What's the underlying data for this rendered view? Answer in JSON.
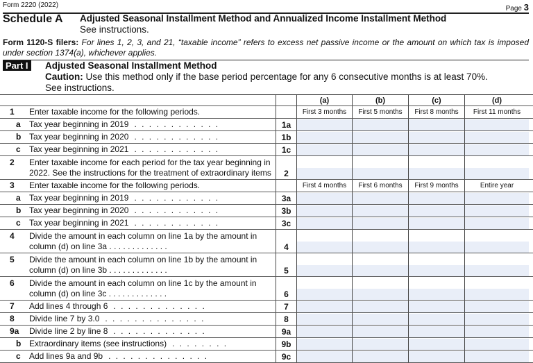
{
  "header": {
    "form": "Form 2220 (2022)",
    "page_label": "Page",
    "page_num": "3"
  },
  "schedule": {
    "label": "Schedule A",
    "title": "Adjusted Seasonal Installment Method and Annualized Income Installment Method",
    "see": "See instructions."
  },
  "filers": {
    "bold": "Form 1120-S filers:",
    "text": " For lines 1, 2, 3, and 21, “taxable income” refers to excess net passive income or the amount on which tax is imposed under section 1374(a), whichever applies."
  },
  "part": {
    "label": "Part I",
    "title": "Adjusted Seasonal Installment Method",
    "caution_bold": "Caution:",
    "caution": " Use this method only if the base period percentage for any 6 consecutive months is at least 70%.",
    "see": "See instructions."
  },
  "columns": [
    "(a)",
    "(b)",
    "(c)",
    "(d)"
  ],
  "periods1": [
    "First 3 months",
    "First 5 months",
    "First 8 months",
    "First 11 months"
  ],
  "periods3": [
    "First 4 months",
    "First 6 months",
    "First 9 months",
    "Entire year"
  ],
  "lines": [
    {
      "type": "head",
      "num": "1",
      "text": "Enter taxable income for the following periods.",
      "periods": "periods1"
    },
    {
      "num": "a",
      "sub": true,
      "text": "Tax year beginning in 2019",
      "dots": ". . . . . . . . . . . .",
      "label": "1a"
    },
    {
      "num": "b",
      "sub": true,
      "text": "Tax year beginning in 2020",
      "dots": ". . . . . . . . . . . .",
      "label": "1b"
    },
    {
      "num": "c",
      "sub": true,
      "text": "Tax year beginning in 2021",
      "dots": ". . . . . . . . . . . .",
      "label": "1c"
    },
    {
      "num": "2",
      "tall": true,
      "text": "Enter taxable income for each period for the tax year beginning in 2022. See the instructions for the treatment of extraordinary items",
      "label": "2"
    },
    {
      "type": "head",
      "num": "3",
      "text": "Enter taxable income for the following periods.",
      "periods": "periods3"
    },
    {
      "num": "a",
      "sub": true,
      "text": "Tax year beginning in 2019",
      "dots": ". . . . . . . . . . . .",
      "label": "3a"
    },
    {
      "num": "b",
      "sub": true,
      "text": "Tax year beginning in 2020",
      "dots": ". . . . . . . . . . . .",
      "label": "3b"
    },
    {
      "num": "c",
      "sub": true,
      "text": "Tax year beginning in 2021",
      "dots": ". . . . . . . . . . . .",
      "label": "3c"
    },
    {
      "num": "4",
      "tall": true,
      "text": "Divide the amount in each column on line 1a by the amount in column (d) on line 3a  . . . . . . . . . . . . .",
      "label": "4"
    },
    {
      "num": "5",
      "tall": true,
      "text": "Divide the amount in each column on line 1b by the amount in column (d) on line 3b  . . . . . . . . . . . . .",
      "label": "5"
    },
    {
      "num": "6",
      "tall": true,
      "text": "Divide the amount in each column on line 1c by the amount in column (d) on line 3c  . . . . . . . . . . . . .",
      "label": "6"
    },
    {
      "num": "7",
      "text": "Add lines 4 through 6",
      "dots": ". . . . . . . . . . . . .",
      "label": "7"
    },
    {
      "num": "8",
      "text": "Divide line 7 by 3.0",
      "dots": ". . . . . . . . . . . . . .",
      "label": "8"
    },
    {
      "num": "9a",
      "text": "Divide line 2 by line 8",
      "dots": ". . . . . . . . . . . . .",
      "label": "9a"
    },
    {
      "num": "b",
      "sub": true,
      "text": "Extraordinary items (see instructions)",
      "dots": ". . . . . . . .",
      "label": "9b"
    },
    {
      "num": "c",
      "sub": true,
      "text": "Add lines 9a and 9b",
      "dots": ". . . . . . . . . . . . . .",
      "label": "9c"
    }
  ]
}
